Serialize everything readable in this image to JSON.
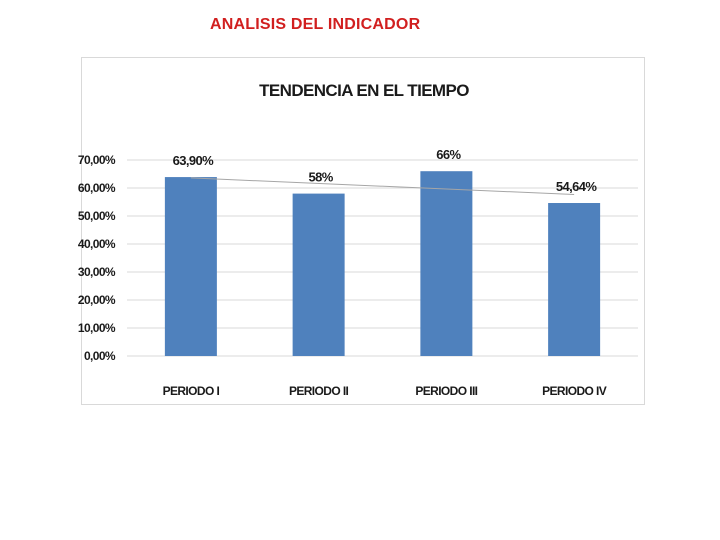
{
  "slide": {
    "heading": "ANALISIS DEL INDICADOR"
  },
  "colors": {
    "heading": "#d11f1f",
    "bar": "#4f81bd",
    "gridline": "#d9d9d9",
    "trendline": "#a6a6a6"
  },
  "chart_data": {
    "type": "bar",
    "title": "TENDENCIA EN EL TIEMPO",
    "xlabel": "",
    "ylabel": "",
    "categories": [
      "PERIODO I",
      "PERIODO II",
      "PERIODO III",
      "PERIODO IV"
    ],
    "values": [
      63.9,
      58,
      66,
      54.64
    ],
    "data_labels": [
      "63,90%",
      "58%",
      "66%",
      "54,64%"
    ],
    "ylim": [
      0,
      70
    ],
    "yticks": [
      0,
      10,
      20,
      30,
      40,
      50,
      60,
      70
    ],
    "ytick_labels": [
      "0,00%",
      "10,00%",
      "20,00%",
      "30,00%",
      "40,00%",
      "50,00%",
      "60,00%",
      "70,00%"
    ],
    "grid": true,
    "legend": "none",
    "trendline": "linear"
  }
}
